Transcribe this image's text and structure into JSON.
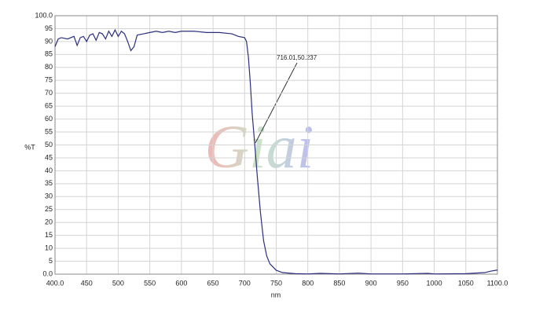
{
  "chart_data": {
    "type": "line",
    "xlabel": "nm",
    "ylabel": "%T",
    "annotation": "716.01,50.237",
    "watermark": "Giai",
    "grid": true,
    "xlim": [
      400,
      1100
    ],
    "ylim": [
      0,
      100
    ],
    "xticks": [
      {
        "value": 400,
        "label": "400.0"
      },
      450,
      500,
      550,
      600,
      650,
      700,
      750,
      800,
      850,
      900,
      950,
      1000,
      1050,
      {
        "value": 1100,
        "label": "1100.0"
      }
    ],
    "yticks": [
      {
        "value": 0,
        "label": "0.0"
      },
      5,
      10,
      15,
      20,
      25,
      30,
      35,
      40,
      45,
      50,
      55,
      60,
      65,
      70,
      75,
      80,
      85,
      90,
      95,
      {
        "value": 100,
        "label": "100.0"
      }
    ],
    "x": [
      400,
      405,
      410,
      420,
      430,
      435,
      440,
      445,
      450,
      455,
      460,
      465,
      470,
      475,
      480,
      485,
      490,
      495,
      500,
      505,
      510,
      515,
      520,
      525,
      530,
      540,
      550,
      560,
      570,
      580,
      590,
      600,
      620,
      640,
      660,
      680,
      690,
      700,
      703,
      706,
      709,
      712,
      716.01,
      720,
      725,
      730,
      735,
      740,
      750,
      760,
      780,
      800,
      820,
      850,
      880,
      900,
      950,
      990,
      1000,
      1050,
      1080,
      1090,
      1100
    ],
    "series": [
      {
        "color": "#2b2f7e",
        "values": [
          88,
          91,
          91.5,
          91,
          92,
          88.5,
          91.5,
          92,
          90,
          92.5,
          93,
          90.5,
          93.5,
          93,
          91,
          94,
          92,
          94.5,
          92,
          94,
          93,
          90,
          86.5,
          88,
          92.5,
          93,
          93.5,
          94,
          93.5,
          94,
          93.5,
          94,
          94,
          93.5,
          93.5,
          93,
          92,
          91.5,
          90,
          84,
          74,
          62,
          50.237,
          38,
          24,
          13,
          7,
          4,
          1.5,
          0.6,
          0.2,
          0.1,
          0.3,
          0.1,
          0.4,
          0.1,
          0.1,
          0.3,
          0.1,
          0.2,
          0.6,
          1.2,
          1.6
        ]
      }
    ]
  }
}
